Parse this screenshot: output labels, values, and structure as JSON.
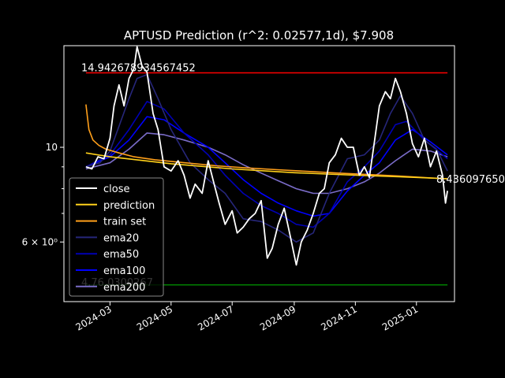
{
  "chart_data": {
    "type": "line",
    "title": "APTUSD Prediction (r^2: 0.02577,1d), $7.908",
    "xlabel": "",
    "ylabel": "",
    "yscale": "log",
    "x_range": [
      "2024-01-15",
      "2025-02-08"
    ],
    "ylim": [
      4.35,
      17.3
    ],
    "x_ticks": [
      "2024-03",
      "2024-05",
      "2024-07",
      "2024-09",
      "2024-11",
      "2025-01"
    ],
    "y_ticks": [
      {
        "value": 10,
        "label": "10"
      },
      {
        "value": 6,
        "label": "6 × 10⁰"
      }
    ],
    "grid": false,
    "legend_position": "lower-left",
    "hlines": [
      {
        "value": 14.942678934567452,
        "label": "14.942678934567452",
        "color": "#ff0000"
      },
      {
        "value": 4.76,
        "label": "4.76  0300267",
        "color": "#008000"
      }
    ],
    "end_label": "8.436097650",
    "colors": {
      "close": "#ffffff",
      "prediction": "#ffd11a",
      "train_set": "#ff9f1a",
      "ema20": "#26267a",
      "ema50": "#0000b4",
      "ema100": "#0000ff",
      "ema200": "#7a6cc8"
    },
    "series": [
      {
        "name": "close",
        "x": [
          "2024-02-06",
          "2024-02-12",
          "2024-02-18",
          "2024-02-24",
          "2024-03-01",
          "2024-03-05",
          "2024-03-10",
          "2024-03-15",
          "2024-03-20",
          "2024-03-25",
          "2024-03-28",
          "2024-04-02",
          "2024-04-07",
          "2024-04-13",
          "2024-04-18",
          "2024-04-24",
          "2024-05-01",
          "2024-05-08",
          "2024-05-14",
          "2024-05-20",
          "2024-05-25",
          "2024-06-01",
          "2024-06-07",
          "2024-06-13",
          "2024-06-18",
          "2024-06-24",
          "2024-07-01",
          "2024-07-06",
          "2024-07-12",
          "2024-07-18",
          "2024-07-24",
          "2024-07-30",
          "2024-08-05",
          "2024-08-10",
          "2024-08-16",
          "2024-08-22",
          "2024-08-28",
          "2024-09-03",
          "2024-09-08",
          "2024-09-14",
          "2024-09-20",
          "2024-09-26",
          "2024-10-01",
          "2024-10-06",
          "2024-10-12",
          "2024-10-18",
          "2024-10-24",
          "2024-10-30",
          "2024-11-05",
          "2024-11-10",
          "2024-11-15",
          "2024-11-20",
          "2024-11-25",
          "2024-12-01",
          "2024-12-06",
          "2024-12-11",
          "2024-12-16",
          "2024-12-22",
          "2024-12-28",
          "2025-01-03",
          "2025-01-09",
          "2025-01-15",
          "2025-01-21",
          "2025-01-27",
          "2025-01-30",
          "2025-02-01"
        ],
        "values": [
          9.0,
          8.9,
          9.5,
          9.4,
          10.5,
          12.5,
          14.0,
          12.5,
          14.5,
          15.3,
          17.2,
          15.5,
          15.0,
          12.0,
          11.0,
          9.0,
          8.8,
          9.3,
          8.6,
          7.6,
          8.2,
          7.8,
          9.3,
          8.2,
          7.4,
          6.6,
          7.1,
          6.3,
          6.5,
          6.8,
          7.0,
          7.5,
          5.5,
          5.8,
          6.6,
          7.2,
          6.2,
          5.3,
          6.0,
          6.4,
          7.0,
          7.8,
          8.0,
          9.2,
          9.6,
          10.5,
          10.0,
          10.0,
          8.6,
          9.0,
          8.5,
          10.3,
          12.5,
          13.5,
          13.0,
          14.5,
          13.5,
          12.0,
          10.2,
          9.5,
          10.5,
          9.0,
          9.8,
          8.6,
          7.4,
          7.908
        ]
      },
      {
        "name": "prediction",
        "x": [
          "2024-02-06",
          "2024-03-01",
          "2024-05-01",
          "2024-07-01",
          "2024-09-01",
          "2024-11-01",
          "2025-01-01",
          "2025-02-01"
        ],
        "values": [
          9.7,
          9.5,
          9.15,
          8.9,
          8.72,
          8.6,
          8.5,
          8.44
        ]
      },
      {
        "name": "train set",
        "x": [
          "2024-02-06",
          "2024-02-09",
          "2024-02-13",
          "2024-02-19",
          "2024-02-26",
          "2024-03-10",
          "2024-03-25",
          "2024-04-15",
          "2024-05-15",
          "2024-06-15",
          "2024-07-15",
          "2024-08-15",
          "2024-09-15",
          "2024-10-15",
          "2024-11-15",
          "2024-12-15",
          "2025-01-15",
          "2025-02-01"
        ],
        "values": [
          12.6,
          11.0,
          10.4,
          10.1,
          9.9,
          9.7,
          9.5,
          9.35,
          9.2,
          9.05,
          8.95,
          8.86,
          8.78,
          8.7,
          8.63,
          8.56,
          8.48,
          8.44
        ]
      },
      {
        "name": "ema20",
        "x": [
          "2024-02-06",
          "2024-02-20",
          "2024-03-01",
          "2024-03-10",
          "2024-03-20",
          "2024-03-28",
          "2024-04-07",
          "2024-04-18",
          "2024-05-01",
          "2024-05-20",
          "2024-06-07",
          "2024-06-24",
          "2024-07-12",
          "2024-07-30",
          "2024-08-16",
          "2024-09-03",
          "2024-09-20",
          "2024-10-06",
          "2024-10-24",
          "2024-11-10",
          "2024-11-25",
          "2024-12-06",
          "2024-12-16",
          "2024-12-28",
          "2025-01-09",
          "2025-01-21",
          "2025-02-01"
        ],
        "values": [
          9.0,
          9.2,
          9.8,
          11.2,
          13.0,
          14.5,
          14.8,
          13.0,
          11.0,
          9.2,
          8.4,
          7.8,
          6.8,
          6.7,
          6.4,
          6.0,
          6.3,
          7.8,
          9.4,
          9.6,
          10.4,
          12.0,
          13.2,
          12.0,
          10.4,
          9.9,
          8.8
        ]
      },
      {
        "name": "ema50",
        "x": [
          "2024-02-06",
          "2024-03-01",
          "2024-03-20",
          "2024-04-07",
          "2024-04-24",
          "2024-05-14",
          "2024-06-07",
          "2024-06-24",
          "2024-07-12",
          "2024-07-30",
          "2024-08-16",
          "2024-09-03",
          "2024-09-20",
          "2024-10-06",
          "2024-10-24",
          "2024-11-10",
          "2024-11-25",
          "2024-12-11",
          "2024-12-22",
          "2025-01-09",
          "2025-02-01"
        ],
        "values": [
          9.0,
          9.6,
          11.0,
          12.8,
          12.3,
          10.8,
          9.6,
          8.6,
          7.8,
          7.3,
          7.0,
          6.6,
          6.5,
          7.0,
          8.3,
          9.0,
          9.8,
          11.3,
          11.5,
          10.4,
          9.4
        ]
      },
      {
        "name": "ema100",
        "x": [
          "2024-02-06",
          "2024-03-01",
          "2024-03-20",
          "2024-04-07",
          "2024-04-24",
          "2024-05-14",
          "2024-06-07",
          "2024-06-24",
          "2024-07-12",
          "2024-07-30",
          "2024-08-16",
          "2024-09-03",
          "2024-09-20",
          "2024-10-06",
          "2024-10-24",
          "2024-11-10",
          "2024-11-25",
          "2024-12-11",
          "2024-12-28",
          "2025-01-15",
          "2025-02-01"
        ],
        "values": [
          9.0,
          9.5,
          10.4,
          11.8,
          11.6,
          10.8,
          10.0,
          9.2,
          8.4,
          7.8,
          7.4,
          7.1,
          6.9,
          7.0,
          7.9,
          8.6,
          9.2,
          10.4,
          11.0,
          10.3,
          9.6
        ]
      },
      {
        "name": "ema200",
        "x": [
          "2024-02-06",
          "2024-03-01",
          "2024-03-20",
          "2024-04-07",
          "2024-04-24",
          "2024-05-14",
          "2024-06-07",
          "2024-06-24",
          "2024-07-12",
          "2024-07-30",
          "2024-08-16",
          "2024-09-03",
          "2024-09-20",
          "2024-10-06",
          "2024-10-24",
          "2024-11-10",
          "2024-11-25",
          "2024-12-11",
          "2024-12-28",
          "2025-01-15",
          "2025-02-01"
        ],
        "values": [
          8.9,
          9.2,
          9.9,
          10.8,
          10.7,
          10.4,
          10.0,
          9.6,
          9.1,
          8.7,
          8.35,
          8.0,
          7.8,
          7.8,
          8.0,
          8.3,
          8.7,
          9.3,
          9.9,
          9.8,
          9.5
        ]
      }
    ]
  }
}
